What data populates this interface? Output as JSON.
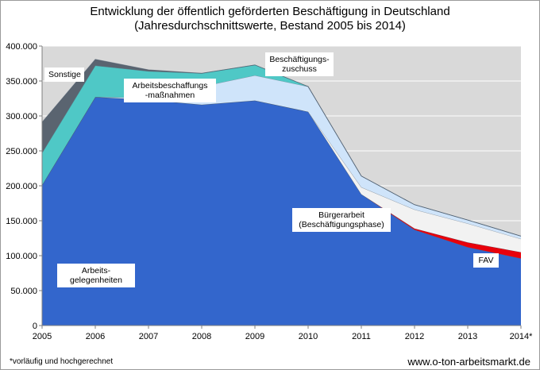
{
  "footnote": "*vorläufig und hochgerechnet",
  "website": "www.o-ton-arbeitsmarkt.de",
  "chart_data": {
    "type": "area",
    "stacked": true,
    "title": "Entwicklung der öffentlich geförderten Beschäftigung in Deutschland",
    "subtitle": "(Jahresdurchschnittswerte, Bestand 2005 bis 2014)",
    "xlabel": "",
    "ylabel": "",
    "categories": [
      "2005",
      "2006",
      "2007",
      "2008",
      "2009",
      "2010",
      "2011",
      "2012",
      "2013",
      "2014*"
    ],
    "ylim": [
      0,
      400000
    ],
    "yticks": [
      0,
      50000,
      100000,
      150000,
      200000,
      250000,
      300000,
      350000,
      400000
    ],
    "ytick_labels": [
      "0",
      "50.000",
      "100.000",
      "150.000",
      "200.000",
      "250.000",
      "300.000",
      "350.000",
      "400.000"
    ],
    "grid": true,
    "series": [
      {
        "name": "Arbeitsgelegenheiten",
        "label_lines": [
          "Arbeits-",
          "gelegenheiten"
        ],
        "color": "#3366cc",
        "values": [
          201000,
          327000,
          323000,
          316000,
          322000,
          306000,
          188000,
          137000,
          112000,
          96000
        ]
      },
      {
        "name": "FAV",
        "label_lines": [
          "FAV"
        ],
        "color": "#e8000b",
        "values": [
          0,
          0,
          0,
          0,
          0,
          0,
          0,
          2000,
          7000,
          9000
        ]
      },
      {
        "name": "Bürgerarbeit (Beschäftigungsphase)",
        "label_lines": [
          "Bürgerarbeit",
          "(Beschäftigungsphase)"
        ],
        "color": "#f2f2f2",
        "values": [
          0,
          0,
          0,
          0,
          0,
          0,
          10000,
          27000,
          27000,
          19000
        ]
      },
      {
        "name": "Beschäftigungszuschuss",
        "label_lines": [
          "Beschäftigungs-",
          "zuschuss"
        ],
        "color": "#cfe4fa",
        "values": [
          0,
          0,
          3000,
          26000,
          36000,
          36000,
          16000,
          7000,
          5000,
          4000
        ]
      },
      {
        "name": "Arbeitsbeschaffungsmaßnahmen",
        "label_lines": [
          "Arbeitsbeschaffungs",
          "-maßnahmen"
        ],
        "color": "#4fc8c6",
        "values": [
          46000,
          45000,
          38000,
          19000,
          15000,
          0,
          0,
          0,
          0,
          0
        ]
      },
      {
        "name": "Sonstige",
        "label_lines": [
          "Sonstige"
        ],
        "color": "#5a6470",
        "values": [
          44000,
          9000,
          2000,
          0,
          0,
          0,
          0,
          0,
          0,
          0
        ]
      }
    ]
  }
}
